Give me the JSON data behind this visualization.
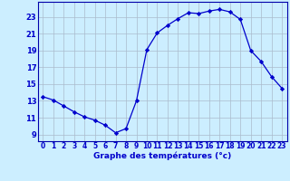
{
  "hours": [
    0,
    1,
    2,
    3,
    4,
    5,
    6,
    7,
    8,
    9,
    10,
    11,
    12,
    13,
    14,
    15,
    16,
    17,
    18,
    19,
    20,
    21,
    22,
    23
  ],
  "temps": [
    13.5,
    13.1,
    12.4,
    11.7,
    11.1,
    10.7,
    10.1,
    9.2,
    9.7,
    13.0,
    19.1,
    21.1,
    22.0,
    22.8,
    23.5,
    23.4,
    23.7,
    23.9,
    23.6,
    22.7,
    19.0,
    17.7,
    15.9,
    14.5
  ],
  "line_color": "#0000cc",
  "marker": "D",
  "marker_size": 2.2,
  "bg_color": "#cceeff",
  "grid_color": "#aabbcc",
  "ylabel_ticks": [
    9,
    11,
    13,
    15,
    17,
    19,
    21,
    23
  ],
  "ylim": [
    8.2,
    24.8
  ],
  "xlim": [
    -0.5,
    23.5
  ],
  "xlabel": "Graphe des températures (°c)",
  "xlabel_color": "#0000cc",
  "axis_color": "#0000aa",
  "tick_label_color": "#0000cc",
  "tick_fontsize": 5.5,
  "ylabel_fontsize": 6.0,
  "xlabel_fontsize": 6.5
}
